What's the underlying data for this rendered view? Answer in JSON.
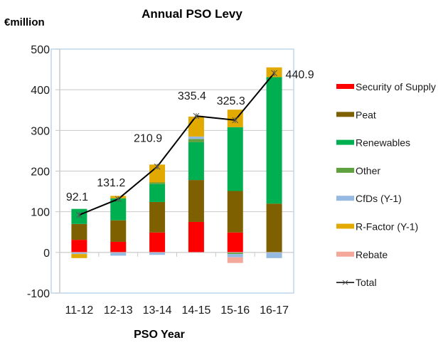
{
  "chart_data": {
    "type": "bar",
    "stacked": true,
    "title": "Annual PSO Levy",
    "ylabel": "€million",
    "xlabel": "PSO Year",
    "ylim": [
      -100,
      500
    ],
    "yticks": [
      500,
      400,
      300,
      200,
      100,
      0,
      -100
    ],
    "grid": true,
    "legend_position": "right",
    "categories": [
      "11-12",
      "12-13",
      "13-14",
      "14-15",
      "15-16",
      "16-17"
    ],
    "series": [
      {
        "name": "Security of Supply",
        "color": "#ff0000",
        "values": [
          31,
          26,
          49,
          75,
          49,
          0
        ]
      },
      {
        "name": "Peat",
        "color": "#7f6000",
        "values": [
          39,
          53,
          75,
          103,
          102,
          120
        ]
      },
      {
        "name": "Renewables",
        "color": "#00b050",
        "values": [
          37,
          54,
          44,
          93,
          157,
          311
        ]
      },
      {
        "name": "Other",
        "color": "#5fa03f",
        "values": [
          0,
          0,
          4,
          8,
          -4,
          0
        ]
      },
      {
        "name": "CfDs (Y-1)",
        "color": "#95b9e0",
        "values": [
          -4,
          -8,
          -6,
          6,
          -8,
          -14
        ]
      },
      {
        "name": "R-Factor (Y-1)",
        "color": "#e2a900",
        "values": [
          -10,
          6,
          44,
          49,
          43,
          24
        ]
      },
      {
        "name": "Rebate",
        "color": "#f4a89a",
        "values": [
          0,
          0,
          0,
          0,
          -14,
          0
        ]
      }
    ],
    "line_series": {
      "name": "Total",
      "color": "#000000",
      "marker": "star",
      "values": [
        92.1,
        131.2,
        210.9,
        335.4,
        325.3,
        440.9
      ],
      "labels": [
        "92.1",
        "131.2",
        "210.9",
        "335.4",
        "325.3",
        "440.9"
      ]
    },
    "legend": [
      {
        "name": "Security of Supply",
        "color": "#ff0000",
        "kind": "bar"
      },
      {
        "name": "Peat",
        "color": "#7f6000",
        "kind": "bar"
      },
      {
        "name": "Renewables",
        "color": "#00b050",
        "kind": "bar"
      },
      {
        "name": "Other",
        "color": "#5fa03f",
        "kind": "bar"
      },
      {
        "name": "CfDs (Y-1)",
        "color": "#95b9e0",
        "kind": "bar"
      },
      {
        "name": "R-Factor (Y-1)",
        "color": "#e2a900",
        "kind": "bar"
      },
      {
        "name": "Rebate",
        "color": "#f4a89a",
        "kind": "bar"
      },
      {
        "name": "Total",
        "color": "#000000",
        "kind": "line"
      }
    ]
  }
}
